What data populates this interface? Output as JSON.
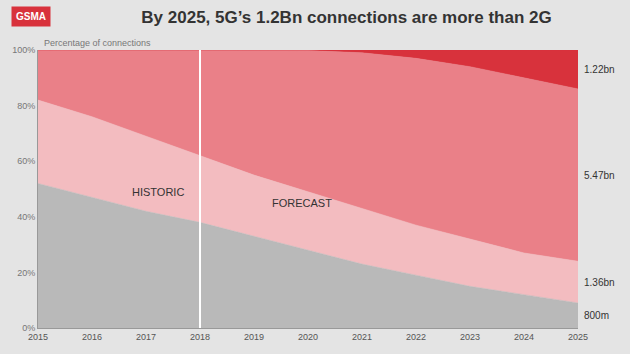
{
  "chart_data": {
    "type": "area",
    "title": "By 2025, 5G’s 1.2Bn connections are more than 2G",
    "logo": "GSMA",
    "y_label": "Percentage of connections",
    "stacked": true,
    "grid": true,
    "x": [
      2015,
      2016,
      2017,
      2018,
      2019,
      2020,
      2021,
      2022,
      2023,
      2024,
      2025
    ],
    "xlim": [
      2015,
      2025
    ],
    "xticks": [
      2015,
      2016,
      2017,
      2018,
      2019,
      2020,
      2021,
      2022,
      2023,
      2024,
      2025
    ],
    "ylim": [
      0,
      100
    ],
    "yticks": [
      {
        "value": 0,
        "label": "0%"
      },
      {
        "value": 20,
        "label": "20%"
      },
      {
        "value": 40,
        "label": "40%"
      },
      {
        "value": 60,
        "label": "60%"
      },
      {
        "value": 80,
        "label": "80%"
      },
      {
        "value": 100,
        "label": "100%"
      }
    ],
    "series": [
      {
        "color": "#b9b9b9",
        "values": [
          52,
          47,
          42,
          38,
          33,
          28,
          23,
          19,
          15,
          12,
          9
        ]
      },
      {
        "color": "#f3bcc0",
        "values": [
          30,
          29,
          27,
          24,
          22,
          21,
          20,
          18,
          17,
          15,
          15
        ]
      },
      {
        "color": "#ea8088",
        "values": [
          18,
          24,
          31,
          38,
          45,
          50.8,
          56,
          60,
          62,
          63,
          62
        ]
      },
      {
        "color": "#d8323c",
        "values": [
          0,
          0,
          0,
          0,
          0,
          0.2,
          1,
          3,
          6,
          10,
          14
        ]
      }
    ],
    "vlines": [
      2018
    ],
    "annotations": [
      {
        "text": "HISTORIC",
        "x": 2016.7,
        "y": 49
      },
      {
        "text": "FORECAST",
        "x": 2019.3,
        "y": 45
      },
      {
        "text": "1.22bn",
        "x": 2025,
        "y": 93
      },
      {
        "text": "5.47bn",
        "x": 2025,
        "y": 55
      },
      {
        "text": "1.36bn",
        "x": 2025,
        "y": 16.5
      },
      {
        "text": "800m",
        "x": 2025,
        "y": 4.5
      }
    ]
  }
}
